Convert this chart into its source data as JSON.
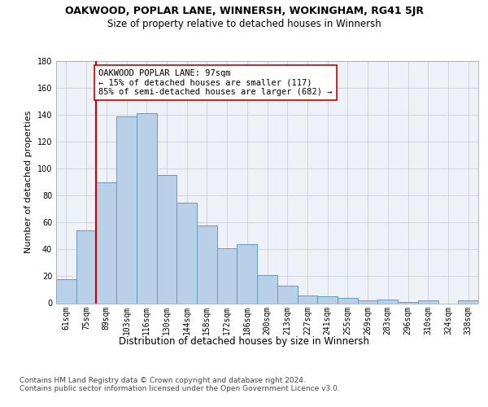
{
  "title": "OAKWOOD, POPLAR LANE, WINNERSH, WOKINGHAM, RG41 5JR",
  "subtitle": "Size of property relative to detached houses in Winnersh",
  "xlabel_bottom": "Distribution of detached houses by size in Winnersh",
  "ylabel": "Number of detached properties",
  "categories": [
    "61sqm",
    "75sqm",
    "89sqm",
    "103sqm",
    "116sqm",
    "130sqm",
    "144sqm",
    "158sqm",
    "172sqm",
    "186sqm",
    "200sqm",
    "213sqm",
    "227sqm",
    "241sqm",
    "255sqm",
    "269sqm",
    "283sqm",
    "296sqm",
    "310sqm",
    "324sqm",
    "338sqm"
  ],
  "values": [
    18,
    54,
    90,
    139,
    141,
    95,
    75,
    58,
    41,
    44,
    21,
    13,
    6,
    5,
    4,
    2,
    3,
    1,
    2,
    0,
    2
  ],
  "bar_color": "#b8d0e8",
  "bar_edge_color": "#6699bb",
  "background_color": "#eef2f8",
  "grid_color": "#d0d0d0",
  "vline_x_index": 1.5,
  "vline_color": "#cc0000",
  "annotation_text": "OAKWOOD POPLAR LANE: 97sqm\n← 15% of detached houses are smaller (117)\n85% of semi-detached houses are larger (682) →",
  "annotation_box_color": "#ffffff",
  "annotation_box_edgecolor": "#cc0000",
  "ylim": [
    0,
    180
  ],
  "yticks": [
    0,
    20,
    40,
    60,
    80,
    100,
    120,
    140,
    160,
    180
  ],
  "footer": "Contains HM Land Registry data © Crown copyright and database right 2024.\nContains public sector information licensed under the Open Government Licence v3.0.",
  "title_fontsize": 9,
  "subtitle_fontsize": 8.5,
  "ylabel_fontsize": 8,
  "tick_fontsize": 7,
  "annot_fontsize": 7.5,
  "footer_fontsize": 6.5
}
